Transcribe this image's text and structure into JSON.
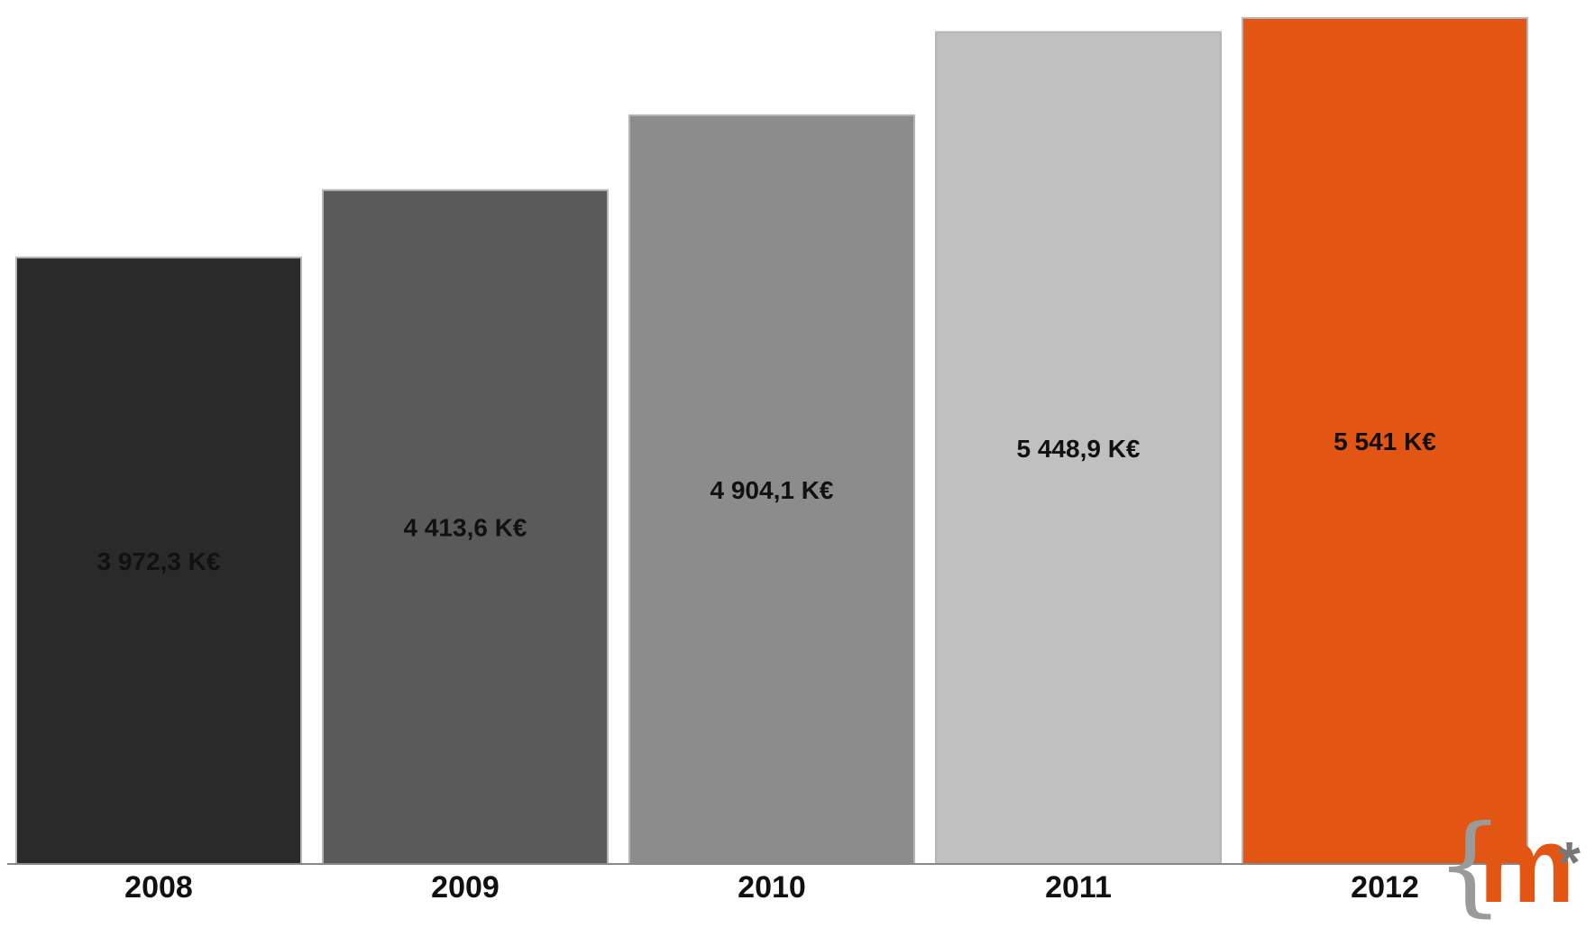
{
  "chart_data": {
    "type": "bar",
    "categories": [
      "2008",
      "2009",
      "2010",
      "2011",
      "2012"
    ],
    "values": [
      3972.3,
      4413.6,
      4904.1,
      5448.9,
      5541
    ],
    "value_labels": [
      "3 972,3 K€",
      "4 413,6 K€",
      "4 904,1 K€",
      "5 448,9 K€",
      "5 541 K€"
    ],
    "colors": [
      "#2a2a2a",
      "#5a5a5a",
      "#8c8c8c",
      "#c0c0c0",
      "#e35512"
    ],
    "title": "",
    "xlabel": "",
    "ylabel": "",
    "ylim": [
      0,
      5600
    ],
    "grid": false,
    "legend": "none"
  },
  "logo": {
    "brace": "{",
    "mark": "m",
    "star": "*",
    "brace_color": "#9a9a9a",
    "mark_color": "#e35512",
    "star_color": "#777777"
  }
}
